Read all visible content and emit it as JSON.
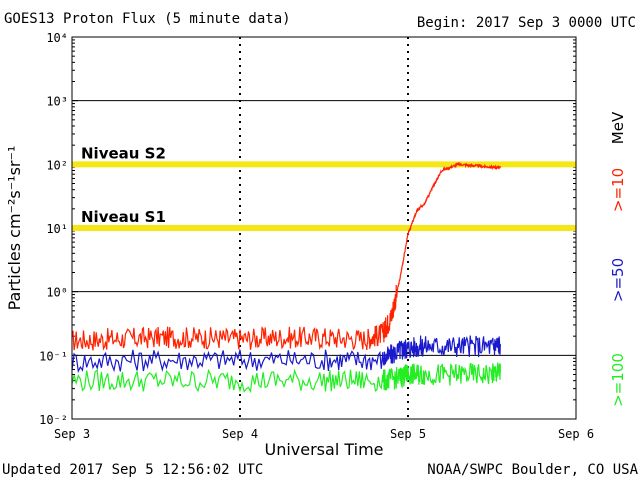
{
  "chart_data": {
    "type": "line",
    "title": "GOES13 Proton Flux (5 minute data)",
    "begin_label": "Begin: 2017 Sep 3 0000 UTC",
    "xlabel": "Universal Time",
    "ylabel": "Particles cm⁻²s⁻¹sr⁻¹",
    "yscale": "log",
    "ylim_exponents": [
      -2,
      4
    ],
    "y_tick_exponents": [
      -2,
      -1,
      0,
      1,
      2,
      3,
      4
    ],
    "x_unit": "days since Sep 3 00:00 UTC",
    "xlim": [
      0,
      3
    ],
    "x_ticks": [
      {
        "x": 0,
        "label": "Sep 3"
      },
      {
        "x": 1,
        "label": "Sep 4"
      },
      {
        "x": 2,
        "label": "Sep 5"
      },
      {
        "x": 3,
        "label": "Sep 6"
      }
    ],
    "grid": "horizontal decades, dashed day separators",
    "thresholds": [
      {
        "name": "Niveau S2",
        "value": 100,
        "color": "#f5e616"
      },
      {
        "name": "Niveau S1",
        "value": 10,
        "color": "#f5e616"
      }
    ],
    "series": [
      {
        "name": ">=10",
        "unit": "MeV",
        "color": "#ff2200",
        "x": [
          0,
          0.25,
          0.5,
          0.75,
          1.0,
          1.25,
          1.5,
          1.75,
          1.85,
          1.9,
          1.95,
          2.0,
          2.05,
          2.1,
          2.15,
          2.2,
          2.3,
          2.4,
          2.5,
          2.55
        ],
        "y": [
          0.17,
          0.18,
          0.19,
          0.19,
          0.18,
          0.19,
          0.19,
          0.18,
          0.22,
          0.4,
          1.5,
          8.0,
          18,
          25,
          45,
          80,
          100,
          95,
          90,
          90
        ]
      },
      {
        "name": ">=50",
        "unit": "",
        "color": "#1a1acc",
        "x": [
          0,
          0.5,
          1.0,
          1.5,
          1.85,
          1.95,
          2.0,
          2.1,
          2.3,
          2.5,
          2.55
        ],
        "y": [
          0.08,
          0.085,
          0.085,
          0.085,
          0.085,
          0.12,
          0.13,
          0.14,
          0.14,
          0.14,
          0.15
        ]
      },
      {
        "name": ">=100",
        "unit": "",
        "color": "#22ee22",
        "x": [
          0,
          0.5,
          1.0,
          1.5,
          1.85,
          1.95,
          2.0,
          2.1,
          2.3,
          2.5,
          2.55
        ],
        "y": [
          0.04,
          0.04,
          0.04,
          0.04,
          0.04,
          0.045,
          0.05,
          0.05,
          0.05,
          0.05,
          0.055
        ]
      }
    ],
    "legend_placement": "right, vertical"
  },
  "footer": {
    "updated": "Updated 2017 Sep  5 12:56:02 UTC",
    "source": "NOAA/SWPC Boulder, CO USA"
  }
}
